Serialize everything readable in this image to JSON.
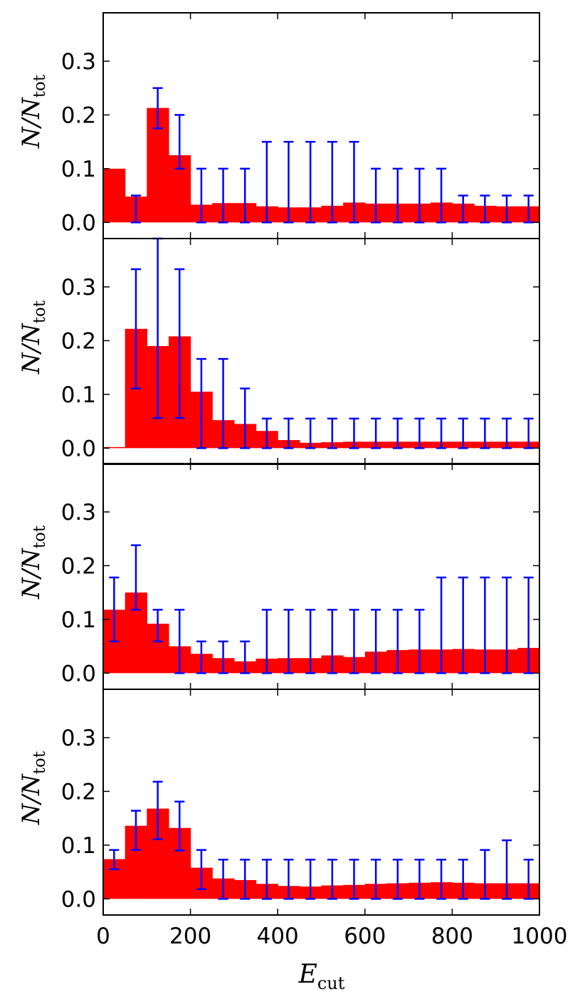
{
  "chart_data": {
    "type": "bar",
    "xlabel_main": "E",
    "xlabel_sub": "cut",
    "ylabel_main": "N/N",
    "ylabel_sub": "tot",
    "xlim": [
      0,
      1000
    ],
    "ylim": [
      -0.03,
      0.39
    ],
    "xticks": [
      0,
      200,
      400,
      600,
      800,
      1000
    ],
    "yticks": [
      "0.0",
      "0.1",
      "0.2",
      "0.3"
    ],
    "bin_width": 50,
    "bar_color": "#ff0000",
    "errorbar_color": "#0000ff",
    "panels": [
      {
        "values": [
          0.1,
          0.048,
          0.213,
          0.125,
          0.033,
          0.036,
          0.036,
          0.03,
          0.028,
          0.028,
          0.031,
          0.037,
          0.035,
          0.035,
          0.035,
          0.037,
          0.035,
          0.031,
          0.03,
          0.03
        ],
        "err_low": [
          null,
          0.0,
          0.175,
          0.1,
          0.0,
          0.0,
          0.0,
          0.0,
          0.0,
          0.0,
          0.0,
          0.0,
          0.0,
          0.0,
          0.0,
          0.0,
          0.0,
          0.0,
          0.0,
          0.0
        ],
        "err_high": [
          null,
          0.05,
          0.25,
          0.2,
          0.1,
          0.1,
          0.1,
          0.15,
          0.15,
          0.15,
          0.15,
          0.15,
          0.1,
          0.1,
          0.1,
          0.1,
          0.05,
          0.05,
          0.05,
          0.05
        ]
      },
      {
        "values": [
          0.002,
          0.222,
          0.19,
          0.208,
          0.105,
          0.052,
          0.045,
          0.032,
          0.015,
          0.01,
          0.011,
          0.012,
          0.012,
          0.012,
          0.012,
          0.012,
          0.012,
          0.012,
          0.012,
          0.012
        ],
        "err_low": [
          null,
          0.111,
          0.056,
          0.056,
          0.0,
          0.0,
          0.0,
          0.0,
          0.0,
          0.0,
          0.0,
          0.0,
          0.0,
          0.0,
          0.0,
          0.0,
          0.0,
          0.0,
          0.0,
          0.0
        ],
        "err_high": [
          null,
          0.333,
          0.39,
          0.333,
          0.166,
          0.166,
          0.111,
          0.055,
          0.055,
          0.055,
          0.055,
          0.055,
          0.055,
          0.055,
          0.055,
          0.055,
          0.055,
          0.055,
          0.055,
          0.055
        ]
      },
      {
        "values": [
          0.118,
          0.15,
          0.092,
          0.05,
          0.036,
          0.028,
          0.022,
          0.027,
          0.028,
          0.028,
          0.033,
          0.03,
          0.04,
          0.043,
          0.044,
          0.044,
          0.045,
          0.044,
          0.044,
          0.047
        ],
        "err_low": [
          0.059,
          0.118,
          0.059,
          0.0,
          0.0,
          0.0,
          0.0,
          0.0,
          0.0,
          0.0,
          0.0,
          0.0,
          0.0,
          0.0,
          0.0,
          0.0,
          0.0,
          0.0,
          0.0,
          0.0
        ],
        "err_high": [
          0.178,
          0.238,
          0.118,
          0.118,
          0.059,
          0.059,
          0.059,
          0.118,
          0.118,
          0.118,
          0.118,
          0.118,
          0.118,
          0.118,
          0.118,
          0.178,
          0.178,
          0.178,
          0.178,
          0.178
        ]
      },
      {
        "values": [
          0.074,
          0.136,
          0.168,
          0.132,
          0.058,
          0.038,
          0.035,
          0.028,
          0.024,
          0.023,
          0.025,
          0.026,
          0.028,
          0.029,
          0.03,
          0.031,
          0.03,
          0.029,
          0.029,
          0.029
        ],
        "err_low": [
          0.055,
          0.091,
          0.111,
          0.09,
          0.018,
          0.0,
          0.0,
          0.0,
          0.0,
          0.0,
          0.0,
          0.0,
          0.0,
          0.0,
          0.0,
          0.0,
          0.0,
          0.0,
          0.0,
          0.0
        ],
        "err_high": [
          0.091,
          0.164,
          0.218,
          0.181,
          0.091,
          0.073,
          0.073,
          0.073,
          0.073,
          0.073,
          0.073,
          0.073,
          0.073,
          0.073,
          0.073,
          0.073,
          0.073,
          0.091,
          0.109,
          0.073
        ]
      }
    ]
  }
}
